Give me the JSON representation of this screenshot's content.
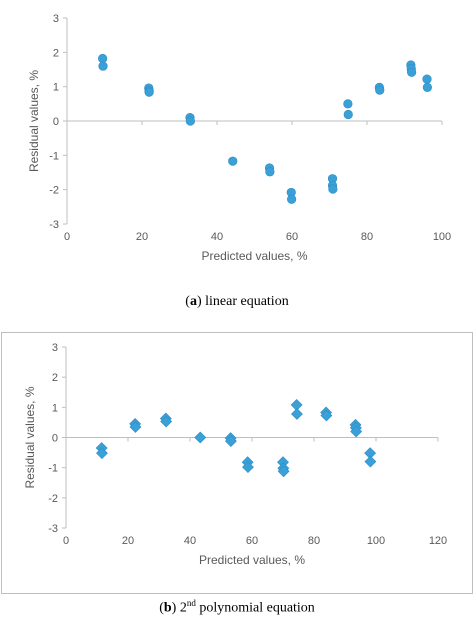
{
  "chart_data": [
    {
      "type": "scatter",
      "title": "",
      "xlabel": "Predicted values, %",
      "ylabel": "Residual values, %",
      "xlim": [
        0,
        100
      ],
      "ylim": [
        -3,
        3
      ],
      "xticks": [
        0,
        20,
        40,
        60,
        80,
        100
      ],
      "yticks": [
        -3,
        -2,
        -1,
        0,
        1,
        2,
        3
      ],
      "marker": "circle",
      "color": "#3aa0d8",
      "grid": false,
      "points": [
        {
          "x": 9.5,
          "y": 1.82
        },
        {
          "x": 9.6,
          "y": 1.6
        },
        {
          "x": 21.8,
          "y": 0.96
        },
        {
          "x": 21.9,
          "y": 0.88
        },
        {
          "x": 21.9,
          "y": 0.84
        },
        {
          "x": 32.8,
          "y": 0.1
        },
        {
          "x": 32.9,
          "y": 0.0
        },
        {
          "x": 44.2,
          "y": -1.17
        },
        {
          "x": 54.0,
          "y": -1.37
        },
        {
          "x": 54.1,
          "y": -1.48
        },
        {
          "x": 59.8,
          "y": -2.08
        },
        {
          "x": 59.9,
          "y": -2.28
        },
        {
          "x": 70.8,
          "y": -1.68
        },
        {
          "x": 70.8,
          "y": -1.88
        },
        {
          "x": 70.9,
          "y": -1.98
        },
        {
          "x": 74.9,
          "y": 0.5
        },
        {
          "x": 75.0,
          "y": 0.19
        },
        {
          "x": 83.3,
          "y": 0.98
        },
        {
          "x": 83.4,
          "y": 0.9
        },
        {
          "x": 91.7,
          "y": 1.63
        },
        {
          "x": 91.8,
          "y": 1.52
        },
        {
          "x": 91.9,
          "y": 1.42
        },
        {
          "x": 96.0,
          "y": 1.22
        },
        {
          "x": 96.1,
          "y": 0.98
        }
      ]
    },
    {
      "type": "scatter",
      "title": "",
      "xlabel": "Predicted values, %",
      "ylabel": "Residual values, %",
      "xlim": [
        0,
        120
      ],
      "ylim": [
        -3,
        3
      ],
      "xticks": [
        0,
        20,
        40,
        60,
        80,
        100,
        120
      ],
      "yticks": [
        -3,
        -2,
        -1,
        0,
        1,
        2,
        3
      ],
      "marker": "diamond",
      "color": "#3aa0d8",
      "grid": false,
      "points": [
        {
          "x": 11.5,
          "y": -0.35
        },
        {
          "x": 11.6,
          "y": -0.52
        },
        {
          "x": 22.3,
          "y": 0.45
        },
        {
          "x": 22.4,
          "y": 0.35
        },
        {
          "x": 32.2,
          "y": 0.63
        },
        {
          "x": 32.3,
          "y": 0.53
        },
        {
          "x": 43.3,
          "y": 0.0
        },
        {
          "x": 53.1,
          "y": -0.02
        },
        {
          "x": 53.2,
          "y": -0.12
        },
        {
          "x": 58.6,
          "y": -0.82
        },
        {
          "x": 58.7,
          "y": -0.98
        },
        {
          "x": 70.0,
          "y": -0.82
        },
        {
          "x": 70.1,
          "y": -1.02
        },
        {
          "x": 70.2,
          "y": -1.12
        },
        {
          "x": 74.4,
          "y": 1.08
        },
        {
          "x": 74.5,
          "y": 0.78
        },
        {
          "x": 83.9,
          "y": 0.83
        },
        {
          "x": 84.0,
          "y": 0.73
        },
        {
          "x": 93.4,
          "y": 0.42
        },
        {
          "x": 93.5,
          "y": 0.32
        },
        {
          "x": 93.6,
          "y": 0.2
        },
        {
          "x": 98.1,
          "y": -0.52
        },
        {
          "x": 98.2,
          "y": -0.8
        }
      ]
    }
  ],
  "captions": {
    "a": {
      "label": "a",
      "text": " linear equation"
    },
    "b": {
      "label": "b",
      "text_pre": " 2",
      "superscript": "nd",
      "text_post": " polynomial equation"
    }
  }
}
